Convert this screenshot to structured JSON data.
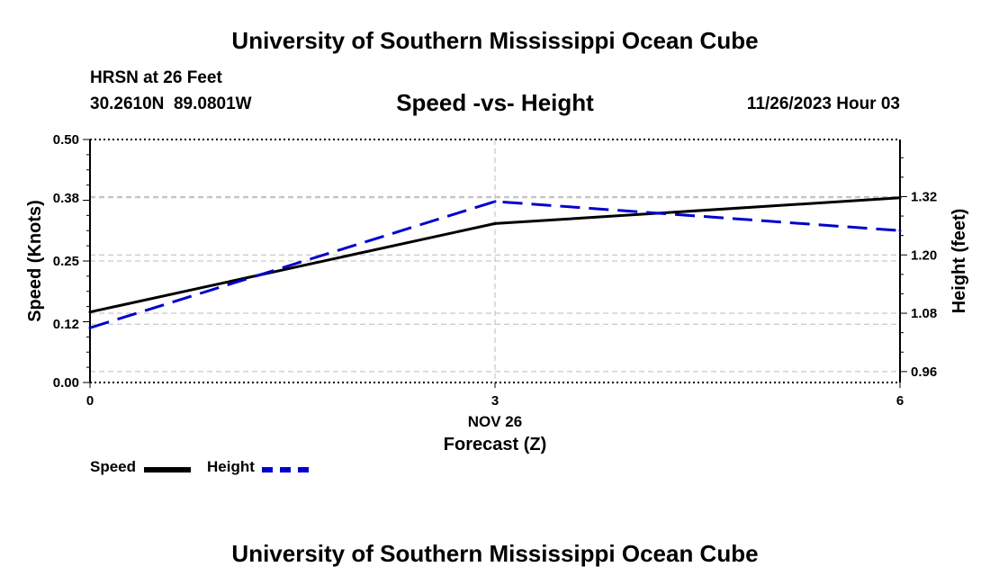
{
  "header": {
    "title": "University of Southern Mississippi Ocean Cube",
    "station": "HRSN at 26 Feet",
    "coords": "30.2610N  89.0801W",
    "subtitle": "Speed -vs- Height",
    "datetime": "11/26/2023 Hour 03"
  },
  "footer": {
    "title": "University of Southern Mississippi Ocean Cube"
  },
  "legend": {
    "speed_label": "Speed",
    "height_label": "Height"
  },
  "colors": {
    "speed": "#000000",
    "height": "#0000cc",
    "grid": "#bbbbbb"
  },
  "chart_data": {
    "type": "line",
    "title": "Speed -vs- Height",
    "xlabel": "Forecast (Z)",
    "x_sublabel": "NOV 26",
    "x": [
      0,
      3,
      6
    ],
    "xticks": [
      "0",
      "3",
      "6"
    ],
    "xlim": [
      0,
      6
    ],
    "ylabel_left": "Speed (Knots)",
    "ylabel_right": "Height (feet)",
    "ylim_left": [
      0,
      0.5
    ],
    "yticks_left": [
      "0.00",
      "0.12",
      "0.25",
      "0.38",
      "0.50"
    ],
    "ylim_right": [
      0.9375,
      1.4375
    ],
    "yticks_right": [
      "0.96",
      "1.08",
      "1.20",
      "1.32"
    ],
    "series": [
      {
        "name": "Speed",
        "axis": "left",
        "style": "solid",
        "values": [
          0.145,
          0.327,
          0.38
        ]
      },
      {
        "name": "Height",
        "axis": "right",
        "style": "dashed",
        "values": [
          1.05,
          1.31,
          1.25
        ]
      }
    ],
    "legend_position": "bottom-left"
  }
}
